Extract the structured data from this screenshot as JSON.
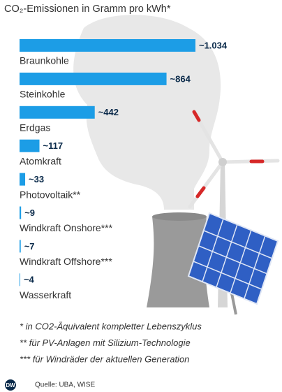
{
  "chart_data": {
    "type": "bar",
    "orientation": "horizontal",
    "title": "CO₂-Emissionen in Gramm pro kWh*",
    "categories": [
      "Braunkohle",
      "Steinkohle",
      "Erdgas",
      "Atomkraft",
      "Photovoltaik**",
      "Windkraft Onshore***",
      "Windkraft Offshore***",
      "Wasserkraft"
    ],
    "values": [
      1034,
      864,
      442,
      117,
      33,
      9,
      7,
      4
    ],
    "value_labels": [
      "~1.034",
      "~864",
      "~442",
      "~117",
      "~33",
      "~9",
      "~7",
      "~4"
    ],
    "color": "#1c9de6",
    "footnotes": [
      "* in CO2-Äquivalent kompletter Lebenszyklus",
      "** für PV-Anlagen mit Silizium-Technologie",
      "*** für Windräder der aktuellen Generation"
    ],
    "source": "Quelle: UBA, WISE",
    "logo": "DW"
  }
}
